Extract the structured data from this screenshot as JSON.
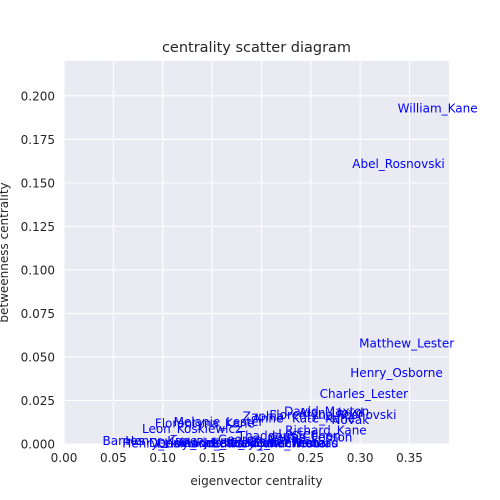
{
  "chart_data": {
    "type": "scatter",
    "title": "centrality scatter diagram",
    "xlabel": "eigenvector centrality",
    "ylabel": "betweenness centrality",
    "xlim": [
      0.0,
      0.39
    ],
    "ylim": [
      0.0,
      0.22
    ],
    "xticks": [
      "0.00",
      "0.05",
      "0.10",
      "0.15",
      "0.20",
      "0.25",
      "0.30",
      "0.35"
    ],
    "yticks": [
      "0.000",
      "0.025",
      "0.050",
      "0.075",
      "0.100",
      "0.125",
      "0.150",
      "0.175",
      "0.200"
    ],
    "grid": true,
    "colors": {
      "plot_bg": "#eaeaf2",
      "grid": "#ffffff",
      "label": "#0000ff",
      "text": "#262626"
    },
    "points": [
      {
        "label": "William_Kane",
        "x": 0.338,
        "y": 0.193
      },
      {
        "label": "Abel_Rosnovski",
        "x": 0.292,
        "y": 0.161
      },
      {
        "label": "Matthew_Lester",
        "x": 0.299,
        "y": 0.058
      },
      {
        "label": "Henry_Osborne",
        "x": 0.29,
        "y": 0.041
      },
      {
        "label": "Charles_Lester",
        "x": 0.259,
        "y": 0.029
      },
      {
        "label": "David_Maxton",
        "x": 0.223,
        "y": 0.019
      },
      {
        "label": "Alan_Lloyd",
        "x": 0.238,
        "y": 0.018
      },
      {
        "label": "Rosnovski",
        "x": 0.276,
        "y": 0.017
      },
      {
        "label": "Florentyna",
        "x": 0.208,
        "y": 0.017
      },
      {
        "label": "Zaphia",
        "x": 0.181,
        "y": 0.016
      },
      {
        "label": "Anne",
        "x": 0.191,
        "y": 0.015
      },
      {
        "label": "Kate_Kane",
        "x": 0.231,
        "y": 0.015
      },
      {
        "label": "Novak",
        "x": 0.271,
        "y": 0.014
      },
      {
        "label": "Melanie_Lester",
        "x": 0.111,
        "y": 0.013
      },
      {
        "label": "Florentyna_Kane",
        "x": 0.092,
        "y": 0.012
      },
      {
        "label": "Leon_Koskiewicz",
        "x": 0.079,
        "y": 0.009
      },
      {
        "label": "Richard_Kane",
        "x": 0.224,
        "y": 0.008
      },
      {
        "label": "Lester",
        "x": 0.217,
        "y": 0.006
      },
      {
        "label": "Thaddeus_Cohen",
        "x": 0.176,
        "y": 0.005
      },
      {
        "label": "Curtis_Fenton",
        "x": 0.209,
        "y": 0.004
      },
      {
        "label": "George_Novak",
        "x": 0.156,
        "y": 0.003
      },
      {
        "label": "Barnes",
        "x": 0.039,
        "y": 0.002
      },
      {
        "label": "Henry_Kane",
        "x": 0.062,
        "y": 0.002
      },
      {
        "label": "Dennis_Roberts",
        "x": 0.086,
        "y": 0.001
      },
      {
        "label": "Wladek_Koskiewicz",
        "x": 0.113,
        "y": 0.001
      },
      {
        "label": "Jessie_Kovats",
        "x": 0.142,
        "y": 0.001
      },
      {
        "label": "Steve_Schwartz",
        "x": 0.168,
        "y": 0.001
      },
      {
        "label": "Lawrence",
        "x": 0.194,
        "y": 0.001
      },
      {
        "label": "Henry_Lloyd",
        "x": 0.059,
        "y": 0.0005
      },
      {
        "label": "Desmond_Pacey",
        "x": 0.094,
        "y": 0.0005
      },
      {
        "label": "Jake_Thomas",
        "x": 0.198,
        "y": 0.0005
      },
      {
        "label": "Edward_Winchester",
        "x": 0.15,
        "y": 0.0005
      },
      {
        "label": "Richard",
        "x": 0.232,
        "y": 0.001
      }
    ]
  }
}
